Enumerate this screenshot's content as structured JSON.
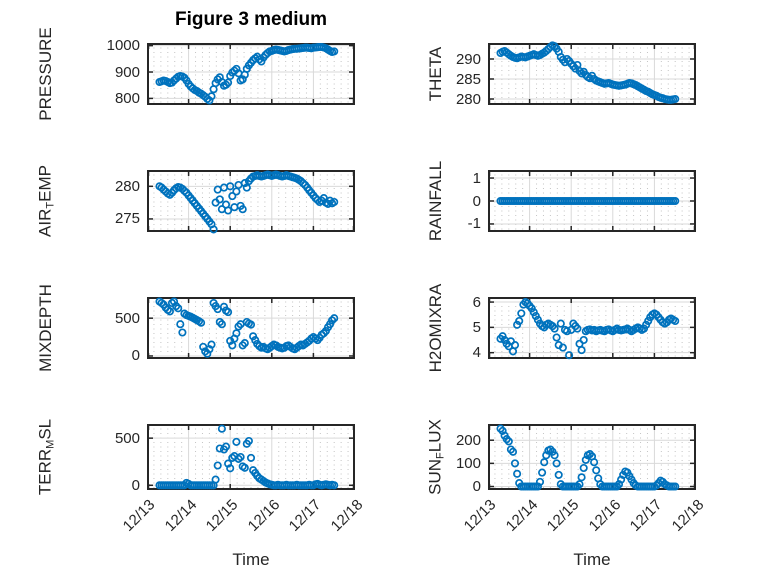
{
  "figure": {
    "title": "Figure 3 medium",
    "xlabel": "Time",
    "marker_color": "#0072BD",
    "axis_color": "#262626",
    "major_grid_color": "#d9d9d9",
    "minor_grid_color": "#c4c4c4",
    "text_color": "#262626",
    "x_ticks": [
      "12/13",
      "12/14",
      "12/15",
      "12/16",
      "12/17",
      "12/18"
    ],
    "x_range": [
      13,
      18
    ]
  },
  "chart_data": [
    {
      "type": "scatter",
      "name": "PRESSURE",
      "row": 0,
      "col": 0,
      "ylabel_parts": [
        {
          "text": "PRESSURE",
          "sub": false
        }
      ],
      "y_ticks": [
        800,
        900,
        1000
      ],
      "ylim": [
        775,
        1010
      ],
      "x_start": 13.3,
      "x_step": 0.05,
      "y": [
        862,
        865,
        868,
        866,
        862,
        858,
        860,
        868,
        875,
        882,
        885,
        883,
        878,
        868,
        855,
        845,
        838,
        832,
        828,
        822,
        818,
        812,
        806,
        798,
        792,
        808,
        835,
        858,
        872,
        880,
        862,
        848,
        852,
        860,
        885,
        898,
        905,
        912,
        895,
        868,
        872,
        890,
        912,
        925,
        935,
        945,
        952,
        958,
        948,
        940,
        955,
        965,
        972,
        978,
        980,
        983,
        985,
        984,
        982,
        980,
        978,
        980,
        983,
        985,
        987,
        988,
        988,
        989,
        990,
        991,
        992,
        992,
        991,
        990,
        992,
        993,
        994,
        995,
        995,
        993,
        990,
        985,
        980,
        976,
        978
      ]
    },
    {
      "type": "scatter",
      "name": "THETA",
      "row": 0,
      "col": 1,
      "ylabel_parts": [
        {
          "text": "THETA",
          "sub": false
        }
      ],
      "y_ticks": [
        280,
        285,
        290
      ],
      "ylim": [
        278.5,
        294
      ],
      "x_start": 13.3,
      "x_step": 0.05,
      "y": [
        291.5,
        291.8,
        292.0,
        291.6,
        291.2,
        290.8,
        290.5,
        290.3,
        290.2,
        290.4,
        290.6,
        290.5,
        290.4,
        290.6,
        290.8,
        291.0,
        291.2,
        291.0,
        290.8,
        291.0,
        291.3,
        291.6,
        292.0,
        292.5,
        293.0,
        293.4,
        293.2,
        292.6,
        291.8,
        290.5,
        289.8,
        289.2,
        290.0,
        289.5,
        288.8,
        288.2,
        287.6,
        288.5,
        287.0,
        286.4,
        286.8,
        286.0,
        285.5,
        285.2,
        285.8,
        285.0,
        284.6,
        284.4,
        284.2,
        284.0,
        283.8,
        283.9,
        284.0,
        283.8,
        283.6,
        283.5,
        283.4,
        283.3,
        283.4,
        283.5,
        283.6,
        283.8,
        284.0,
        283.9,
        283.7,
        283.5,
        283.2,
        282.9,
        282.6,
        282.3,
        282.0,
        281.8,
        281.5,
        281.2,
        281.0,
        280.8,
        280.5,
        280.3,
        280.2,
        280.0,
        279.9,
        279.8,
        279.8,
        279.9,
        280.0
      ]
    },
    {
      "type": "scatter",
      "name": "AIR_TEMP",
      "row": 1,
      "col": 0,
      "ylabel_parts": [
        {
          "text": "AIR",
          "sub": false
        },
        {
          "text": "T",
          "sub": true
        },
        {
          "text": "EMP",
          "sub": false
        }
      ],
      "y_ticks": [
        275,
        280
      ],
      "ylim": [
        273,
        282.5
      ],
      "x_start": 13.3,
      "x_step": 0.05,
      "y": [
        280.0,
        279.8,
        279.5,
        279.2,
        278.9,
        278.7,
        279.0,
        279.4,
        279.7,
        279.9,
        279.8,
        279.6,
        279.3,
        279.0,
        278.6,
        278.2,
        277.8,
        277.4,
        277.0,
        276.6,
        276.2,
        275.8,
        275.4,
        275.0,
        274.6,
        274.2,
        273.4,
        277.5,
        279.5,
        278.0,
        276.5,
        279.8,
        277.2,
        276.3,
        280.0,
        278.5,
        276.8,
        279.2,
        280.2,
        277.0,
        276.5,
        280.5,
        279.8,
        280.8,
        281.2,
        281.5,
        281.6,
        281.7,
        281.6,
        281.5,
        281.6,
        281.7,
        281.8,
        281.7,
        281.6,
        281.7,
        281.8,
        281.7,
        281.6,
        281.5,
        281.6,
        281.7,
        281.6,
        281.5,
        281.4,
        281.3,
        281.2,
        281.0,
        280.8,
        280.5,
        280.2,
        279.8,
        279.4,
        279.0,
        278.6,
        278.2,
        277.9,
        277.6,
        277.8,
        278.2,
        277.5,
        277.3,
        277.8,
        277.4,
        277.6
      ]
    },
    {
      "type": "scatter",
      "name": "RAINFALL",
      "row": 1,
      "col": 1,
      "ylabel_parts": [
        {
          "text": "RAINFALL",
          "sub": false
        }
      ],
      "y_ticks": [
        -1,
        0,
        1
      ],
      "ylim": [
        -1.35,
        1.35
      ],
      "x_start": 13.3,
      "x_step": 0.05,
      "y": [
        0,
        0,
        0,
        0,
        0,
        0,
        0,
        0,
        0,
        0,
        0,
        0,
        0,
        0,
        0,
        0,
        0,
        0,
        0,
        0,
        0,
        0,
        0,
        0,
        0,
        0,
        0,
        0,
        0,
        0,
        0,
        0,
        0,
        0,
        0,
        0,
        0,
        0,
        0,
        0,
        0,
        0,
        0,
        0,
        0,
        0,
        0,
        0,
        0,
        0,
        0,
        0,
        0,
        0,
        0,
        0,
        0,
        0,
        0,
        0,
        0,
        0,
        0,
        0,
        0,
        0,
        0,
        0,
        0,
        0,
        0,
        0,
        0,
        0,
        0,
        0,
        0,
        0,
        0,
        0,
        0,
        0,
        0,
        0,
        0
      ]
    },
    {
      "type": "scatter",
      "name": "MIXDEPTH",
      "row": 2,
      "col": 0,
      "ylabel_parts": [
        {
          "text": "MIXDEPTH",
          "sub": false
        }
      ],
      "y_ticks": [
        0,
        500
      ],
      "ylim": [
        -40,
        780
      ],
      "x_start": 13.3,
      "x_step": 0.05,
      "y": [
        720,
        700,
        680,
        640,
        610,
        590,
        700,
        720,
        660,
        630,
        420,
        310,
        560,
        540,
        530,
        520,
        505,
        490,
        475,
        460,
        440,
        120,
        60,
        30,
        90,
        150,
        700,
        660,
        620,
        450,
        420,
        650,
        600,
        580,
        200,
        140,
        230,
        300,
        390,
        420,
        140,
        170,
        450,
        430,
        415,
        260,
        210,
        160,
        130,
        110,
        120,
        100,
        90,
        110,
        130,
        150,
        140,
        120,
        110,
        100,
        110,
        130,
        140,
        120,
        100,
        90,
        110,
        130,
        150,
        140,
        160,
        180,
        200,
        230,
        250,
        230,
        210,
        240,
        280,
        300,
        330,
        380,
        420,
        470,
        500
      ]
    },
    {
      "type": "scatter",
      "name": "H2OMIXRA",
      "row": 2,
      "col": 1,
      "ylabel_parts": [
        {
          "text": "H2OMIXRA",
          "sub": false
        }
      ],
      "y_ticks": [
        4,
        5,
        6
      ],
      "ylim": [
        3.75,
        6.2
      ],
      "x_start": 13.3,
      "x_step": 0.05,
      "y": [
        4.55,
        4.65,
        4.5,
        4.35,
        4.25,
        4.45,
        4.05,
        4.3,
        5.1,
        5.25,
        5.55,
        5.9,
        6.0,
        5.95,
        5.85,
        5.75,
        5.6,
        5.45,
        5.3,
        5.15,
        5.05,
        5.0,
        5.1,
        5.15,
        5.1,
        5.05,
        4.95,
        4.6,
        4.3,
        5.15,
        4.2,
        4.9,
        4.85,
        3.9,
        4.9,
        5.15,
        5.05,
        4.95,
        4.35,
        4.1,
        4.5,
        4.85,
        4.9,
        4.92,
        4.88,
        4.9,
        4.85,
        4.88,
        4.9,
        4.87,
        4.85,
        4.9,
        4.92,
        4.88,
        4.85,
        4.9,
        4.95,
        4.9,
        4.88,
        4.9,
        4.92,
        4.95,
        4.9,
        4.85,
        4.9,
        4.95,
        5.0,
        4.95,
        4.9,
        4.95,
        5.1,
        5.25,
        5.4,
        5.5,
        5.55,
        5.5,
        5.4,
        5.3,
        5.2,
        5.15,
        5.2,
        5.3,
        5.35,
        5.3,
        5.25
      ]
    },
    {
      "type": "scatter",
      "name": "TERR_MSL",
      "row": 3,
      "col": 0,
      "ylabel_parts": [
        {
          "text": "TERR",
          "sub": false
        },
        {
          "text": "M",
          "sub": true
        },
        {
          "text": "SL",
          "sub": false
        }
      ],
      "y_ticks": [
        0,
        500
      ],
      "ylim": [
        -50,
        650
      ],
      "x_start": 13.3,
      "x_step": 0.05,
      "y": [
        0,
        0,
        0,
        0,
        0,
        0,
        0,
        0,
        0,
        0,
        0,
        0,
        0,
        25,
        15,
        0,
        0,
        0,
        0,
        0,
        0,
        0,
        0,
        0,
        0,
        0,
        0,
        60,
        210,
        390,
        600,
        380,
        410,
        230,
        180,
        290,
        310,
        460,
        280,
        300,
        200,
        185,
        440,
        470,
        290,
        160,
        130,
        100,
        75,
        60,
        45,
        30,
        20,
        10,
        5,
        0,
        0,
        5,
        0,
        0,
        0,
        5,
        0,
        0,
        0,
        0,
        5,
        0,
        0,
        0,
        0,
        0,
        5,
        0,
        0,
        10,
        15,
        5,
        0,
        5,
        10,
        5,
        0,
        5,
        0
      ]
    },
    {
      "type": "scatter",
      "name": "SUN_FLUX",
      "row": 3,
      "col": 1,
      "ylabel_parts": [
        {
          "text": "SUN",
          "sub": false
        },
        {
          "text": "F",
          "sub": true
        },
        {
          "text": "LUX",
          "sub": false
        }
      ],
      "y_ticks": [
        0,
        100,
        200
      ],
      "ylim": [
        -15,
        270
      ],
      "x_start": 13.3,
      "x_step": 0.05,
      "y": [
        250,
        240,
        220,
        205,
        195,
        160,
        150,
        100,
        55,
        15,
        0,
        0,
        0,
        0,
        0,
        0,
        0,
        0,
        0,
        20,
        60,
        105,
        135,
        155,
        160,
        150,
        135,
        100,
        50,
        10,
        0,
        0,
        0,
        0,
        0,
        0,
        0,
        0,
        10,
        40,
        80,
        115,
        135,
        140,
        130,
        105,
        70,
        35,
        10,
        0,
        0,
        0,
        0,
        0,
        0,
        0,
        0,
        10,
        30,
        50,
        65,
        60,
        45,
        30,
        15,
        5,
        0,
        0,
        0,
        0,
        0,
        0,
        0,
        0,
        0,
        5,
        15,
        25,
        20,
        10,
        5,
        0,
        0,
        0,
        0
      ]
    }
  ]
}
